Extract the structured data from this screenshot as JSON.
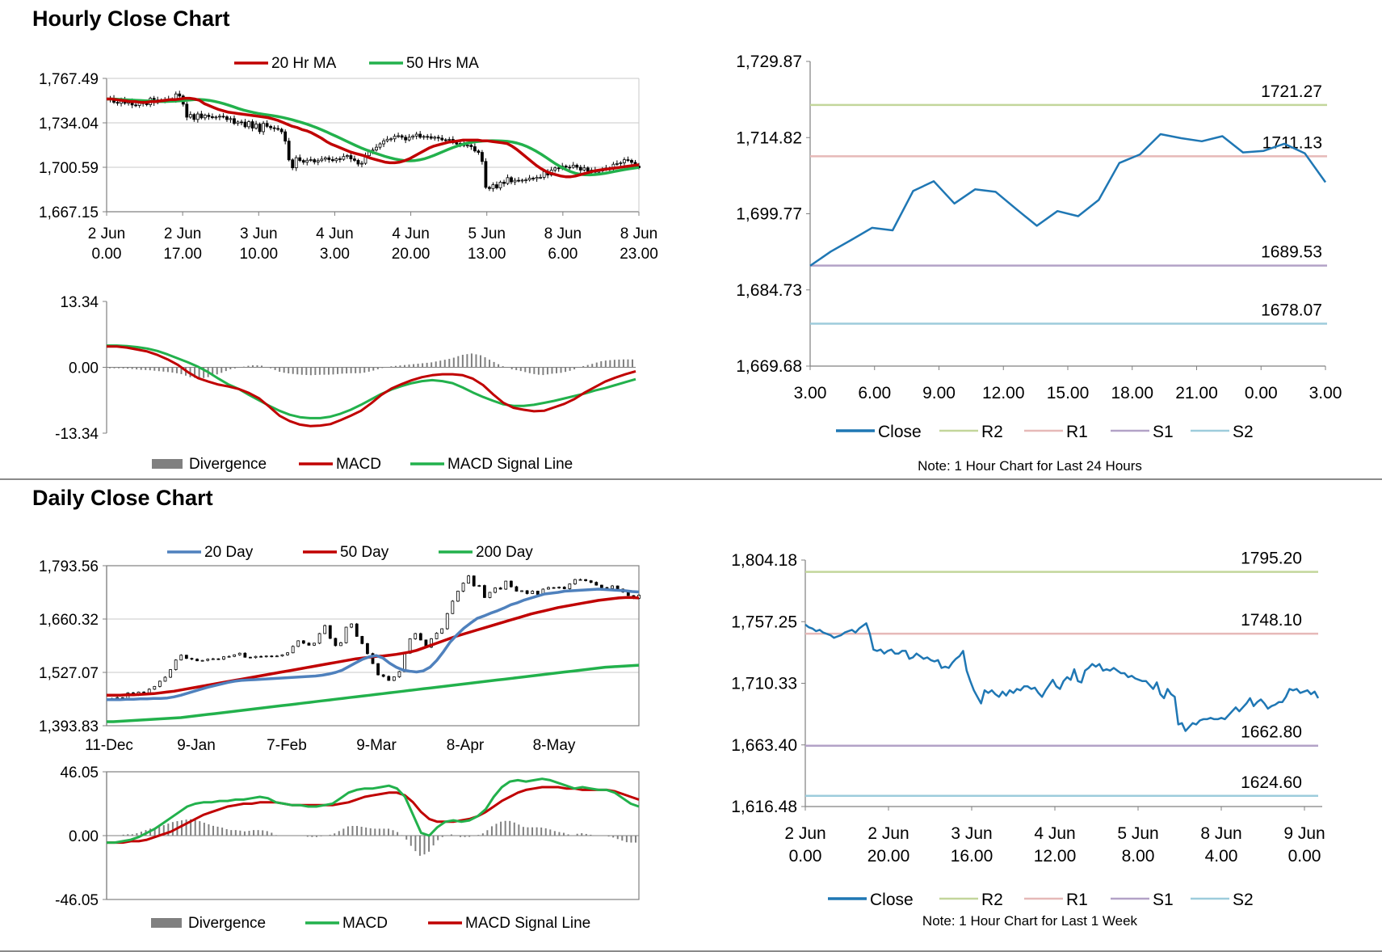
{
  "hourly_section": {
    "title": "Hourly Close Chart"
  },
  "daily_section": {
    "title": "Daily Close Chart"
  },
  "colors": {
    "red": "#C00000",
    "green": "#22B14C",
    "blue": "#4F81BD",
    "close": "#1F77B4",
    "r2": "#C3D69B",
    "r1": "#E6B9B8",
    "s1": "#B3A2C7",
    "s2": "#9DCCDC",
    "divergence": "#808080",
    "grid": "#C8C8C8",
    "axis": "#808080"
  },
  "chart_data": [
    {
      "id": "hourly_price",
      "type": "candlestick_line",
      "legend": [
        "20 Hr MA",
        "50 Hrs MA"
      ],
      "ylim": [
        1667.15,
        1767.49
      ],
      "yticks": [
        "1,767.49",
        "1,734.04",
        "1,700.59",
        "1,667.15"
      ],
      "xticks": [
        [
          "2 Jun",
          "0.00"
        ],
        [
          "2 Jun",
          "17.00"
        ],
        [
          "3 Jun",
          "10.00"
        ],
        [
          "4 Jun",
          "3.00"
        ],
        [
          "4 Jun",
          "20.00"
        ],
        [
          "5 Jun",
          "13.00"
        ],
        [
          "8 Jun",
          "6.00"
        ],
        [
          "8 Jun",
          "23.00"
        ]
      ],
      "close": [
        1751.8,
        1752.5,
        1749.5,
        1748.8,
        1751.2,
        1748.8,
        1750.6,
        1747.5,
        1747.1,
        1749.1,
        1748.7,
        1747.7,
        1752.5,
        1749.2,
        1751.3,
        1751.2,
        1751.6,
        1752.0,
        1751.6,
        1755.8,
        1754.2,
        1748.1,
        1738.3,
        1740.3,
        1736.6,
        1740.7,
        1737.8,
        1739.8,
        1738.7,
        1738.0,
        1738.4,
        1739.0,
        1738.6,
        1736.5,
        1737.2,
        1733.6,
        1734.7,
        1734.6,
        1731.1,
        1734.9,
        1730.1,
        1733.1,
        1727.4,
        1733.6,
        1731.4,
        1730.3,
        1729.8,
        1729.2,
        1727.3,
        1720.3,
        1706.2,
        1700.2,
        1707.8,
        1705.7,
        1704.4,
        1705.9,
        1706.3,
        1704.6,
        1705.6,
        1706.7,
        1707.7,
        1706.4,
        1705.6,
        1707.0,
        1706.6,
        1708.7,
        1709.4,
        1706.9,
        1705.8,
        1703.0,
        1703.6,
        1709.3,
        1712.9,
        1713.6,
        1715.7,
        1718.2,
        1720.5,
        1721.7,
        1722.0,
        1723.9,
        1724.3,
        1723.2,
        1721.2,
        1723.2,
        1724.1,
        1725.5,
        1723.2,
        1723.8,
        1723.6,
        1722.5,
        1723.2,
        1722.5,
        1721.3,
        1721.0,
        1721.6,
        1719.1,
        1718.1,
        1718.6,
        1716.9,
        1717.2,
        1716.1,
        1712.9,
        1711.8,
        1705.0,
        1685.5,
        1684.6,
        1687.5,
        1685.1,
        1689.4,
        1688.4,
        1692.8,
        1689.6,
        1690.8,
        1690.5,
        1690.9,
        1691.1,
        1692.4,
        1692.1,
        1693.0,
        1693.0,
        1697.4,
        1694.8,
        1698.5,
        1700.1,
        1699.6,
        1701.5,
        1700.7,
        1700.6,
        1702.2,
        1700.6,
        1698.5,
        1700.1,
        1697.8,
        1698.5,
        1696.9,
        1697.8,
        1699.0,
        1700.0,
        1699.4,
        1702.9,
        1703.4,
        1704.0,
        1706.3,
        1705.8,
        1704.3,
        1701.5,
        1700.2
      ],
      "ma20": [
        1752.0,
        1752.0,
        1751.5,
        1751.0,
        1750.5,
        1750.0,
        1750.0,
        1749.5,
        1749.5,
        1750.0,
        1750.0,
        1750.5,
        1751.0,
        1751.5,
        1751.5,
        1752.0,
        1752.5,
        1752.5,
        1752.0,
        1751.0,
        1748.5,
        1747.0,
        1745.5,
        1744.0,
        1743.0,
        1742.0,
        1741.5,
        1741.0,
        1740.5,
        1740.0,
        1739.5,
        1739.0,
        1738.5,
        1738.0,
        1737.0,
        1736.0,
        1734.5,
        1733.0,
        1731.5,
        1730.5,
        1729.0,
        1728.0,
        1726.5,
        1724.5,
        1722.5,
        1720.0,
        1718.0,
        1716.5,
        1715.0,
        1713.5,
        1712.0,
        1711.0,
        1710.0,
        1709.0,
        1707.5,
        1706.5,
        1705.5,
        1704.5,
        1704.0,
        1704.0,
        1704.5,
        1705.5,
        1707.0,
        1709.0,
        1711.0,
        1713.0,
        1715.0,
        1716.5,
        1717.5,
        1718.5,
        1719.5,
        1720.0,
        1720.5,
        1721.0,
        1721.0,
        1721.0,
        1721.0,
        1720.5,
        1720.5,
        1720.0,
        1719.5,
        1719.0,
        1718.5,
        1716.5,
        1714.0,
        1711.0,
        1708.0,
        1705.0,
        1702.0,
        1699.5,
        1697.5,
        1696.0,
        1695.0,
        1694.0,
        1693.5,
        1693.5,
        1694.0,
        1695.0,
        1696.0,
        1697.0,
        1698.0,
        1698.5,
        1699.0,
        1699.5,
        1700.0,
        1700.5,
        1701.0,
        1701.5,
        1702.0,
        1702.5
      ]
    },
    {
      "id": "hourly_macd",
      "type": "macd",
      "legend": [
        "Divergence",
        "MACD",
        "MACD Signal Line"
      ],
      "ylim": [
        -13.34,
        13.34
      ],
      "yticks": [
        "13.34",
        "0.00",
        "-13.34"
      ],
      "macd": [
        4.2,
        4.2,
        4.0,
        3.6,
        3.2,
        2.5,
        1.6,
        0.5,
        -1.0,
        -2.2,
        -2.9,
        -3.5,
        -3.9,
        -4.4,
        -5.2,
        -6.3,
        -8.0,
        -9.8,
        -10.9,
        -11.6,
        -11.9,
        -11.8,
        -11.5,
        -10.7,
        -9.8,
        -8.8,
        -7.3,
        -5.6,
        -4.3,
        -3.4,
        -2.6,
        -2.0,
        -1.6,
        -1.4,
        -1.4,
        -1.6,
        -2.3,
        -3.6,
        -5.5,
        -7.2,
        -8.2,
        -8.6,
        -8.9,
        -8.8,
        -8.1,
        -7.4,
        -6.4,
        -5.1,
        -4.0,
        -2.9,
        -2.1,
        -1.4,
        -0.8
      ],
      "signal": [
        4.4,
        4.4,
        4.3,
        4.1,
        3.8,
        3.3,
        2.6,
        1.8,
        1.0,
        0.1,
        -1.0,
        -2.3,
        -3.5,
        -4.4,
        -5.6,
        -6.7,
        -7.8,
        -8.8,
        -9.6,
        -10.1,
        -10.3,
        -10.3,
        -10.0,
        -9.4,
        -8.6,
        -7.6,
        -6.5,
        -5.4,
        -4.5,
        -3.8,
        -3.2,
        -2.8,
        -2.6,
        -2.8,
        -3.2,
        -4.1,
        -5.1,
        -6.0,
        -6.8,
        -7.5,
        -7.8,
        -7.8,
        -7.6,
        -7.2,
        -6.8,
        -6.3,
        -5.8,
        -5.3,
        -4.7,
        -4.2,
        -3.6,
        -3.0,
        -2.4
      ]
    },
    {
      "id": "hourly_24h",
      "type": "line",
      "ylim": [
        1669.68,
        1729.87
      ],
      "yticks": [
        "1,729.87",
        "1,714.82",
        "1,699.77",
        "1,684.73",
        "1,669.68"
      ],
      "xticks": [
        "3.00",
        "6.00",
        "9.00",
        "12.00",
        "15.00",
        "18.00",
        "21.00",
        "0.00",
        "3.00"
      ],
      "legend": [
        "Close",
        "R2",
        "R1",
        "S1",
        "S2"
      ],
      "note": "Note: 1 Hour Chart for Last 24 Hours",
      "close": [
        1689.5,
        1692.3,
        1694.6,
        1697.0,
        1696.5,
        1704.3,
        1706.2,
        1701.8,
        1704.6,
        1704.1,
        1700.7,
        1697.4,
        1700.3,
        1699.3,
        1702.5,
        1709.8,
        1711.5,
        1715.5,
        1714.7,
        1714.1,
        1715.1,
        1711.9,
        1712.2,
        1713.6,
        1711.7,
        1706.0
      ],
      "levels": [
        {
          "name": "R2",
          "value": 1721.27,
          "label": "1721.27"
        },
        {
          "name": "R1",
          "value": 1711.13,
          "label": "1711.13"
        },
        {
          "name": "S1",
          "value": 1689.53,
          "label": "1689.53"
        },
        {
          "name": "S2",
          "value": 1678.07,
          "label": "1678.07"
        }
      ]
    },
    {
      "id": "daily_price",
      "type": "candlestick_line",
      "legend": [
        "20 Day",
        "50 Day",
        "200 Day"
      ],
      "ylim": [
        1393.83,
        1793.56
      ],
      "yticks": [
        "1,793.56",
        "1,660.32",
        "1,527.07",
        "1,393.83"
      ],
      "xticks": [
        "11-Dec",
        "9-Jan",
        "7-Feb",
        "9-Mar",
        "8-Apr",
        "8-May"
      ],
      "close": [
        1462,
        1462,
        1464,
        1462,
        1476,
        1470,
        1478,
        1476,
        1485,
        1492,
        1505,
        1515,
        1534,
        1558,
        1570,
        1562,
        1560,
        1556,
        1557,
        1560,
        1561,
        1560,
        1566,
        1567,
        1571,
        1575,
        1565,
        1564,
        1567,
        1566,
        1568,
        1567,
        1568,
        1571,
        1576,
        1592,
        1606,
        1600,
        1595,
        1600,
        1624,
        1644,
        1612,
        1594,
        1601,
        1640,
        1648,
        1617,
        1599,
        1574,
        1549,
        1521,
        1517,
        1507,
        1516,
        1529,
        1575,
        1611,
        1624,
        1608,
        1590,
        1611,
        1625,
        1636,
        1674,
        1705,
        1730,
        1750,
        1768,
        1743,
        1744,
        1714,
        1727,
        1738,
        1735,
        1755,
        1741,
        1730,
        1731,
        1724,
        1730,
        1722,
        1735,
        1739,
        1738,
        1740,
        1736,
        1748,
        1759,
        1759,
        1756,
        1752,
        1745,
        1739,
        1737,
        1743,
        1735,
        1728,
        1719,
        1712,
        1720
      ],
      "ma20": [
        1459,
        1459,
        1459,
        1460,
        1460,
        1461,
        1461,
        1462,
        1462,
        1463,
        1466,
        1470,
        1475,
        1480,
        1485,
        1490,
        1494,
        1498,
        1502,
        1505,
        1507,
        1508,
        1509,
        1510,
        1511,
        1512,
        1513,
        1514,
        1515,
        1516,
        1517,
        1518,
        1520,
        1523,
        1527,
        1533,
        1542,
        1551,
        1560,
        1566,
        1569,
        1563,
        1550,
        1540,
        1533,
        1530,
        1528,
        1531,
        1540,
        1557,
        1579,
        1603,
        1621,
        1637,
        1650,
        1662,
        1668,
        1675,
        1681,
        1688,
        1696,
        1701,
        1708,
        1713,
        1718,
        1723,
        1725,
        1727,
        1730,
        1731,
        1732,
        1733,
        1734,
        1735,
        1734,
        1733,
        1732,
        1731,
        1729,
        1728
      ],
      "ma50": [
        1470,
        1470,
        1470,
        1471,
        1471,
        1472,
        1473,
        1474,
        1476,
        1478,
        1480,
        1483,
        1486,
        1489,
        1492,
        1495,
        1498,
        1501,
        1504,
        1507,
        1510,
        1513,
        1516,
        1519,
        1522,
        1525,
        1528,
        1531,
        1534,
        1537,
        1540,
        1543,
        1546,
        1549,
        1552,
        1555,
        1558,
        1561,
        1563,
        1565,
        1567,
        1568,
        1570,
        1572,
        1575,
        1578,
        1582,
        1588,
        1594,
        1600,
        1606,
        1612,
        1618,
        1623,
        1628,
        1633,
        1638,
        1643,
        1648,
        1653,
        1658,
        1663,
        1668,
        1673,
        1677,
        1681,
        1685,
        1689,
        1692,
        1695,
        1698,
        1701,
        1704,
        1707,
        1709,
        1711,
        1713,
        1714,
        1714,
        1713
      ],
      "ma200": [
        1404,
        1404,
        1405,
        1406,
        1407,
        1408,
        1409,
        1410,
        1411,
        1412,
        1413,
        1414,
        1416,
        1418,
        1420,
        1422,
        1424,
        1426,
        1428,
        1430,
        1432,
        1434,
        1436,
        1438,
        1440,
        1442,
        1444,
        1446,
        1448,
        1450,
        1452,
        1454,
        1456,
        1458,
        1460,
        1462,
        1464,
        1466,
        1468,
        1470,
        1472,
        1474,
        1476,
        1478,
        1480,
        1482,
        1484,
        1486,
        1488,
        1490,
        1492,
        1494,
        1496,
        1498,
        1500,
        1502,
        1504,
        1506,
        1508,
        1510,
        1512,
        1514,
        1516,
        1518,
        1520,
        1522,
        1524,
        1526,
        1528,
        1530,
        1532,
        1534,
        1536,
        1538,
        1540,
        1541,
        1542,
        1543,
        1544,
        1545
      ]
    },
    {
      "id": "daily_macd",
      "type": "macd",
      "legend": [
        "Divergence",
        "MACD",
        "MACD Signal Line"
      ],
      "ylim": [
        -46.05,
        46.05
      ],
      "yticks": [
        "46.05",
        "0.00",
        "-46.05"
      ],
      "macd": [
        -5,
        -5,
        -4,
        -3,
        -1,
        2,
        5,
        9,
        13,
        17,
        21,
        23,
        24,
        24,
        25,
        25,
        26,
        26,
        27,
        28,
        27,
        24,
        23,
        22,
        22,
        21,
        21,
        22,
        23,
        27,
        31,
        33,
        34,
        34,
        35,
        36,
        34,
        28,
        15,
        2,
        0,
        6,
        10,
        11,
        10,
        11,
        14,
        19,
        28,
        35,
        39,
        40,
        39,
        40,
        41,
        40,
        38,
        36,
        34,
        35,
        34,
        33,
        33,
        31,
        27,
        23,
        21
      ],
      "signal": [
        -5,
        -5,
        -5,
        -4,
        -4,
        -3,
        -1,
        1,
        3,
        6,
        9,
        12,
        15,
        17,
        19,
        21,
        22,
        23,
        23,
        24,
        24,
        24,
        23,
        22,
        22,
        22,
        22,
        22,
        22,
        23,
        24,
        26,
        28,
        29,
        30,
        31,
        31,
        29,
        24,
        17,
        12,
        10,
        10,
        10,
        11,
        12,
        14,
        17,
        21,
        25,
        28,
        31,
        33,
        34,
        35,
        35,
        35,
        34,
        34,
        33,
        33,
        33,
        33,
        32,
        30,
        28,
        26
      ]
    },
    {
      "id": "daily_week",
      "type": "line",
      "ylim": [
        1616.48,
        1804.18
      ],
      "yticks": [
        "1,804.18",
        "1,757.25",
        "1,710.33",
        "1,663.40",
        "1,616.48"
      ],
      "xticks": [
        [
          "2 Jun",
          "0.00"
        ],
        [
          "2 Jun",
          "20.00"
        ],
        [
          "3 Jun",
          "16.00"
        ],
        [
          "4 Jun",
          "12.00"
        ],
        [
          "5 Jun",
          "8.00"
        ],
        [
          "8 Jun",
          "4.00"
        ],
        [
          "9 Jun",
          "0.00"
        ]
      ],
      "legend": [
        "Close",
        "R2",
        "R1",
        "S1",
        "S2"
      ],
      "note": "Note: 1 Hour Chart for Last 1 Week",
      "close": [
        1755,
        1753,
        1752,
        1750,
        1751,
        1749,
        1748,
        1747,
        1745,
        1746,
        1747,
        1749,
        1750,
        1751,
        1749,
        1752,
        1754,
        1756,
        1748,
        1736,
        1735,
        1736,
        1733,
        1735,
        1736,
        1733,
        1733,
        1735,
        1735,
        1729,
        1730,
        1733,
        1731,
        1729,
        1730,
        1728,
        1727,
        1728,
        1722,
        1723,
        1722,
        1726,
        1729,
        1731,
        1735,
        1720,
        1712,
        1705,
        1700,
        1695,
        1705,
        1703,
        1705,
        1702,
        1700,
        1704,
        1701,
        1705,
        1703,
        1706,
        1705,
        1708,
        1708,
        1706,
        1707,
        1703,
        1700,
        1705,
        1709,
        1713,
        1708,
        1706,
        1712,
        1715,
        1713,
        1721,
        1712,
        1711,
        1720,
        1722,
        1725,
        1723,
        1725,
        1720,
        1721,
        1720,
        1722,
        1720,
        1718,
        1718,
        1715,
        1716,
        1714,
        1713,
        1712,
        1712,
        1709,
        1706,
        1711,
        1702,
        1699,
        1706,
        1702,
        1700,
        1679,
        1680,
        1674,
        1677,
        1680,
        1679,
        1682,
        1683,
        1683,
        1684,
        1683,
        1683,
        1684,
        1683,
        1686,
        1689,
        1692,
        1689,
        1692,
        1695,
        1699,
        1693,
        1696,
        1698,
        1695,
        1691,
        1693,
        1694,
        1696,
        1696,
        1700,
        1706,
        1705,
        1706,
        1703,
        1704,
        1705,
        1702,
        1704,
        1699
      ],
      "levels": [
        {
          "name": "R2",
          "value": 1795.2,
          "label": "1795.20"
        },
        {
          "name": "R1",
          "value": 1748.1,
          "label": "1748.10"
        },
        {
          "name": "S1",
          "value": 1662.8,
          "label": "1662.80"
        },
        {
          "name": "S2",
          "value": 1624.6,
          "label": "1624.60"
        }
      ]
    }
  ]
}
